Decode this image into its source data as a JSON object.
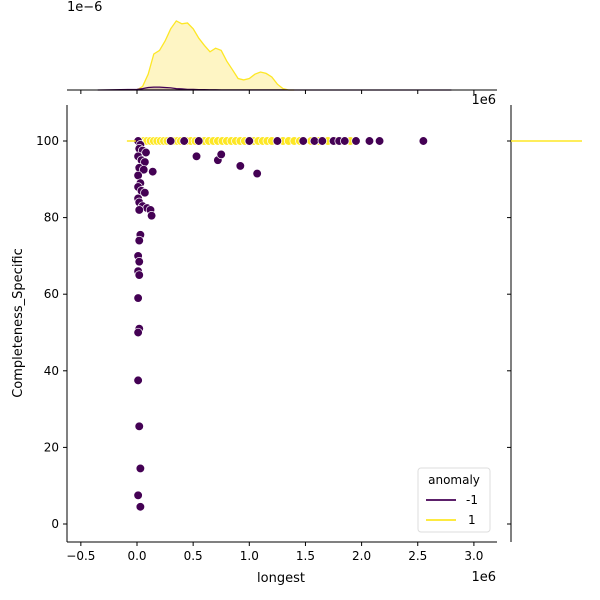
{
  "chart_data": {
    "type": "scatter",
    "title": "",
    "xlabel": "longest",
    "ylabel": "Completeness_Specific",
    "x_offset_label": "1e6",
    "x_offset_label_top": "1e6",
    "top_marginal_offset_label": "1e−6",
    "xlim": [
      -0.6,
      3.2
    ],
    "ylim": [
      -5,
      109
    ],
    "x_ticks": [
      -0.5,
      0.0,
      0.5,
      1.0,
      1.5,
      2.0,
      2.5,
      3.0
    ],
    "x_tick_labels": [
      "−0.5",
      "0.0",
      "0.5",
      "1.0",
      "1.5",
      "2.0",
      "2.5",
      "3.0"
    ],
    "y_ticks": [
      0,
      20,
      40,
      60,
      80,
      100
    ],
    "y_tick_labels": [
      "0",
      "20",
      "40",
      "60",
      "80",
      "100"
    ],
    "grid": false,
    "legend": {
      "title": "anomaly",
      "position": "lower right",
      "entries": [
        {
          "label": "-1",
          "color": "#440154"
        },
        {
          "label": "1",
          "color": "#fde725"
        }
      ]
    },
    "colors": {
      "anomaly_neg": "#440154",
      "anomaly_pos": "#fde725",
      "kde_fill_pos": "#fef5c4"
    },
    "series": [
      {
        "name": "1",
        "color": "#fde725",
        "points": [
          [
            0.02,
            100
          ],
          [
            0.06,
            100
          ],
          [
            0.09,
            100
          ],
          [
            0.12,
            100
          ],
          [
            0.15,
            100
          ],
          [
            0.18,
            100
          ],
          [
            0.21,
            100
          ],
          [
            0.24,
            100
          ],
          [
            0.27,
            100
          ],
          [
            0.3,
            100
          ],
          [
            0.33,
            100
          ],
          [
            0.36,
            100
          ],
          [
            0.39,
            100
          ],
          [
            0.42,
            100
          ],
          [
            0.45,
            100
          ],
          [
            0.48,
            100
          ],
          [
            0.52,
            100
          ],
          [
            0.56,
            100
          ],
          [
            0.6,
            100
          ],
          [
            0.64,
            100
          ],
          [
            0.68,
            100
          ],
          [
            0.72,
            100
          ],
          [
            0.76,
            100
          ],
          [
            0.8,
            100
          ],
          [
            0.84,
            100
          ],
          [
            0.88,
            100
          ],
          [
            0.92,
            100
          ],
          [
            0.96,
            100
          ],
          [
            1.0,
            100
          ],
          [
            1.04,
            100
          ],
          [
            1.08,
            100
          ],
          [
            1.12,
            100
          ],
          [
            1.16,
            100
          ],
          [
            1.2,
            100
          ],
          [
            1.25,
            100
          ],
          [
            1.3,
            100
          ],
          [
            1.35,
            100
          ],
          [
            1.4,
            100
          ],
          [
            1.45,
            100
          ],
          [
            1.55,
            100
          ],
          [
            1.62,
            100
          ],
          [
            1.7,
            100
          ],
          [
            1.78,
            100
          ],
          [
            1.85,
            100
          ],
          [
            1.9,
            100
          ]
        ]
      },
      {
        "name": "-1",
        "color": "#440154",
        "points": [
          [
            0.01,
            100
          ],
          [
            0.03,
            99
          ],
          [
            0.02,
            98
          ],
          [
            0.05,
            97.5
          ],
          [
            0.08,
            97
          ],
          [
            0.01,
            96
          ],
          [
            0.04,
            95
          ],
          [
            0.07,
            94.5
          ],
          [
            0.02,
            93
          ],
          [
            0.06,
            92.5
          ],
          [
            0.14,
            92
          ],
          [
            0.01,
            91
          ],
          [
            0.03,
            89
          ],
          [
            0.01,
            88
          ],
          [
            0.04,
            87
          ],
          [
            0.07,
            86.5
          ],
          [
            0.01,
            85
          ],
          [
            0.02,
            84
          ],
          [
            0.05,
            83
          ],
          [
            0.09,
            82.5
          ],
          [
            0.12,
            82
          ],
          [
            0.02,
            82
          ],
          [
            0.13,
            80.5
          ],
          [
            0.03,
            75.5
          ],
          [
            0.02,
            74
          ],
          [
            0.01,
            70
          ],
          [
            0.02,
            68.5
          ],
          [
            0.01,
            66
          ],
          [
            0.02,
            65
          ],
          [
            0.01,
            59
          ],
          [
            0.02,
            51
          ],
          [
            0.01,
            50
          ],
          [
            0.01,
            37.5
          ],
          [
            0.02,
            25.5
          ],
          [
            0.03,
            14.5
          ],
          [
            0.01,
            7.5
          ],
          [
            0.03,
            4.5
          ],
          [
            0.53,
            96
          ],
          [
            0.72,
            95
          ],
          [
            0.75,
            96.5
          ],
          [
            0.92,
            93.5
          ],
          [
            1.07,
            91.5
          ],
          [
            0.3,
            100
          ],
          [
            0.42,
            100
          ],
          [
            0.55,
            100
          ],
          [
            1.0,
            100
          ],
          [
            1.25,
            100
          ],
          [
            1.48,
            100
          ],
          [
            1.58,
            100
          ],
          [
            1.65,
            100
          ],
          [
            1.75,
            100
          ],
          [
            1.8,
            100
          ],
          [
            1.85,
            100
          ],
          [
            1.95,
            100
          ],
          [
            2.07,
            100
          ],
          [
            2.16,
            100
          ],
          [
            2.55,
            100
          ]
        ]
      }
    ],
    "top_marginal": {
      "type": "kde",
      "x": [
        0.0,
        0.05,
        0.1,
        0.15,
        0.2,
        0.25,
        0.3,
        0.35,
        0.4,
        0.45,
        0.5,
        0.55,
        0.6,
        0.65,
        0.7,
        0.75,
        0.8,
        0.85,
        0.9,
        0.95,
        1.0,
        1.05,
        1.1,
        1.15,
        1.2,
        1.25,
        1.3,
        1.35,
        1.4
      ],
      "series": [
        {
          "name": "1",
          "density": [
            0.0,
            0.05,
            0.22,
            0.5,
            0.55,
            0.68,
            0.85,
            0.96,
            0.92,
            0.93,
            0.85,
            0.72,
            0.62,
            0.53,
            0.58,
            0.55,
            0.4,
            0.28,
            0.16,
            0.14,
            0.16,
            0.22,
            0.25,
            0.23,
            0.18,
            0.08,
            0.02,
            0.0,
            0.0
          ]
        },
        {
          "name": "-1",
          "density": [
            0.01,
            0.02,
            0.035,
            0.04,
            0.04,
            0.035,
            0.03,
            0.02,
            0.015,
            0.01,
            0.008,
            0.006,
            0.005,
            0.004,
            0.004,
            0.003,
            0.003,
            0.002,
            0.002,
            0.002,
            0.002,
            0.002,
            0.002,
            0.002,
            0.001,
            0.001,
            0.001,
            0.0,
            0.0
          ]
        }
      ]
    },
    "right_marginal": {
      "type": "kde",
      "note": "degenerate density at y=100 for anomaly=1 (horizontal line)",
      "y_line": 100,
      "color": "#fde725"
    }
  }
}
